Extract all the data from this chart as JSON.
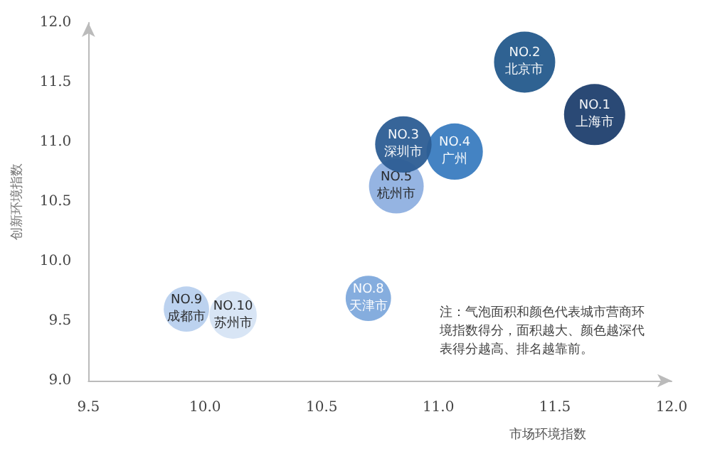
{
  "chart_data": {
    "type": "bubble",
    "xlabel": "市场环境指数",
    "ylabel": "创新环境指数",
    "annotations": [
      "注：气泡面积和颜色代表城市营商环境指数得分，面积越大、颜色越深代表得分越高、排名越靠前。"
    ],
    "xlim": [
      9.5,
      12.0
    ],
    "xticks": [
      9.5,
      {
        "value": 10,
        "label": "10.0"
      },
      10.5,
      {
        "value": 11,
        "label": "11.0"
      },
      11.5,
      {
        "value": 12,
        "label": "12.0"
      }
    ],
    "ylim": [
      9.0,
      12.0
    ],
    "yticks": [
      {
        "value": 9,
        "label": "9.0"
      },
      9.5,
      {
        "value": 10,
        "label": "10.0"
      },
      10.5,
      {
        "value": 11,
        "label": "11.0"
      },
      11.5,
      {
        "value": 12,
        "label": "12.0"
      }
    ],
    "grid": false,
    "legend": false,
    "series": [
      {
        "name": "NO.1 上海市",
        "color": "#1f3f6e",
        "x": [
          11.67
        ],
        "values": [
          11.23
        ],
        "sizes": [
          1
        ]
      },
      {
        "name": "NO.2 北京市",
        "color": "#245a8c",
        "x": [
          11.37
        ],
        "values": [
          11.67
        ],
        "sizes": [
          1
        ]
      },
      {
        "name": "NO.3 深圳市",
        "color": "#2c5d93",
        "x": [
          10.85
        ],
        "values": [
          10.98
        ],
        "sizes": [
          0.85
        ]
      },
      {
        "name": "NO.4 广州",
        "color": "#3a7cc0",
        "x": [
          11.07
        ],
        "values": [
          10.92
        ],
        "sizes": [
          0.85
        ]
      },
      {
        "name": "NO.5 杭州市",
        "color": "#8fb0e0",
        "x": [
          10.82
        ],
        "values": [
          10.63
        ],
        "sizes": [
          0.8
        ]
      },
      {
        "name": "NO.8 天津市",
        "color": "#7ea9dc",
        "x": [
          10.7
        ],
        "values": [
          9.69
        ],
        "sizes": [
          0.55
        ]
      },
      {
        "name": "NO.9 成都市",
        "color": "#b8d0ee",
        "x": [
          9.92
        ],
        "values": [
          9.6
        ],
        "sizes": [
          0.55
        ]
      },
      {
        "name": "NO.10 苏州市",
        "color": "#d6e4f4",
        "x": [
          10.12
        ],
        "values": [
          9.55
        ],
        "sizes": [
          0.6
        ]
      }
    ]
  }
}
